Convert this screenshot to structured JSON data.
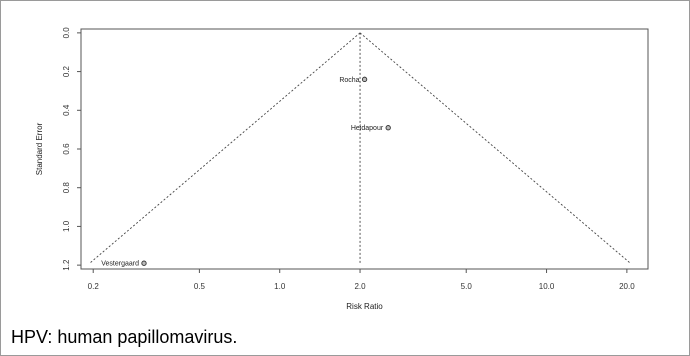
{
  "chart_data": {
    "type": "scatter",
    "subtype": "funnel-plot",
    "xlabel": "Risk Ratio",
    "ylabel": "Standard Error",
    "x_scale": "log",
    "x_ticks": [
      "0.2",
      "0.5",
      "1.0",
      "2.0",
      "5.0",
      "10.0",
      "20.0"
    ],
    "y_ticks": [
      "0.0",
      "0.2",
      "0.4",
      "0.6",
      "0.8",
      "1.0",
      "1.2"
    ],
    "xlim": [
      0.18,
      24
    ],
    "ylim": [
      1.22,
      -0.02
    ],
    "y_reversed": true,
    "pooled_estimate": 2.0,
    "funnel_max_se": 1.19,
    "points": [
      {
        "label": "Rocha",
        "x": 2.08,
        "y": 0.24
      },
      {
        "label": "Heidapour",
        "x": 2.55,
        "y": 0.49
      },
      {
        "label": "Vestergaard",
        "x": 0.31,
        "y": 1.19
      }
    ],
    "grid": false
  },
  "caption": "HPV: human papillomavirus."
}
